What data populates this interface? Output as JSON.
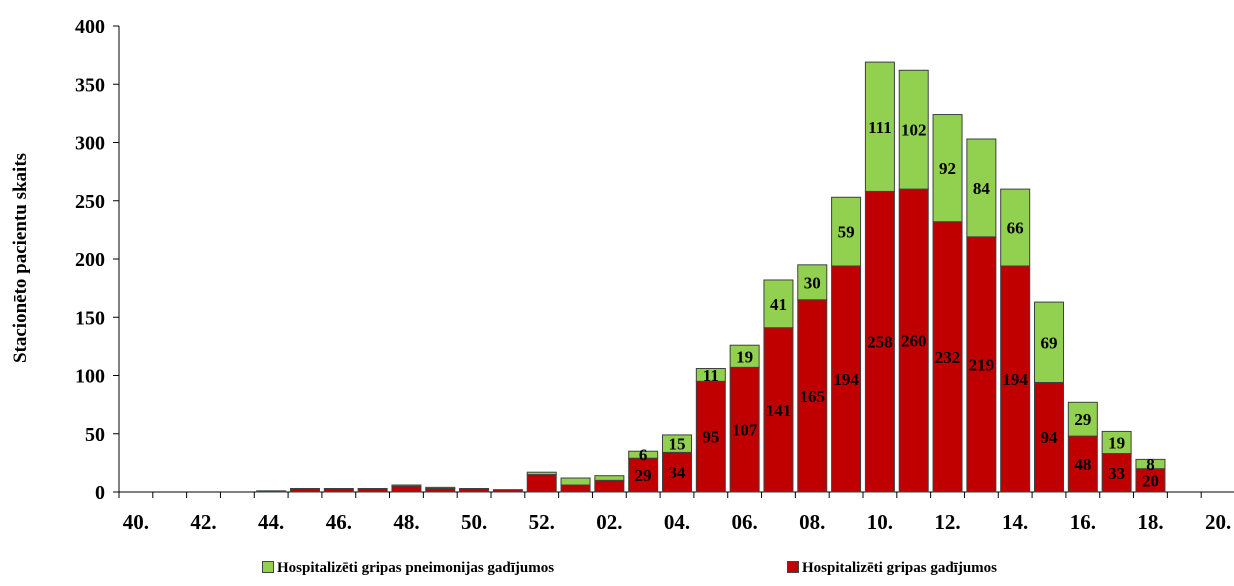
{
  "chart_data": {
    "type": "bar",
    "stacked": true,
    "ylabel": "Stacionēto pacientu skaits",
    "ylim": [
      0,
      400
    ],
    "yticks": [
      0,
      50,
      100,
      150,
      200,
      250,
      300,
      350,
      400
    ],
    "grid": false,
    "legend_position": "bottom",
    "xtick_labels": [
      "40.",
      "42.",
      "44.",
      "46.",
      "48.",
      "50.",
      "52.",
      "02.",
      "04.",
      "06.",
      "08.",
      "10.",
      "12.",
      "14.",
      "16.",
      "18.",
      "20."
    ],
    "weeks": [
      "40.",
      "41.",
      "42.",
      "43.",
      "44.",
      "45.",
      "46.",
      "47.",
      "48.",
      "49.",
      "50.",
      "51.",
      "52.",
      "01.",
      "02.",
      "03.",
      "04.",
      "05.",
      "06.",
      "07.",
      "08.",
      "09.",
      "10.",
      "11.",
      "12.",
      "13.",
      "14.",
      "15.",
      "16.",
      "17.",
      "18.",
      "19.",
      "20."
    ],
    "series": [
      {
        "name": "Hospitalizēti gripas gadījumos",
        "color": "#c00000",
        "values": [
          0,
          0,
          0,
          0,
          1,
          3,
          3,
          3,
          5,
          3,
          3,
          2,
          15,
          6,
          10,
          29,
          34,
          95,
          107,
          141,
          165,
          194,
          258,
          260,
          232,
          219,
          194,
          94,
          48,
          33,
          20,
          0,
          0
        ],
        "labels": [
          null,
          null,
          null,
          null,
          null,
          null,
          null,
          null,
          null,
          null,
          null,
          null,
          null,
          null,
          null,
          29,
          34,
          95,
          107,
          141,
          165,
          194,
          258,
          260,
          232,
          219,
          194,
          94,
          48,
          33,
          20,
          null,
          null
        ]
      },
      {
        "name": "Hospitalizēti gripas pneimonijas gadījumos",
        "color": "#92d050",
        "values": [
          0,
          0,
          0,
          0,
          0,
          0,
          0,
          0,
          1,
          1,
          0,
          0,
          2,
          6,
          4,
          6,
          15,
          11,
          19,
          41,
          30,
          59,
          111,
          102,
          92,
          84,
          66,
          69,
          29,
          19,
          8,
          0,
          0
        ],
        "labels": [
          null,
          null,
          null,
          null,
          null,
          null,
          null,
          null,
          null,
          null,
          null,
          null,
          null,
          null,
          null,
          6,
          15,
          11,
          19,
          41,
          30,
          59,
          111,
          102,
          92,
          84,
          66,
          69,
          29,
          19,
          8,
          null,
          null
        ]
      }
    ]
  }
}
